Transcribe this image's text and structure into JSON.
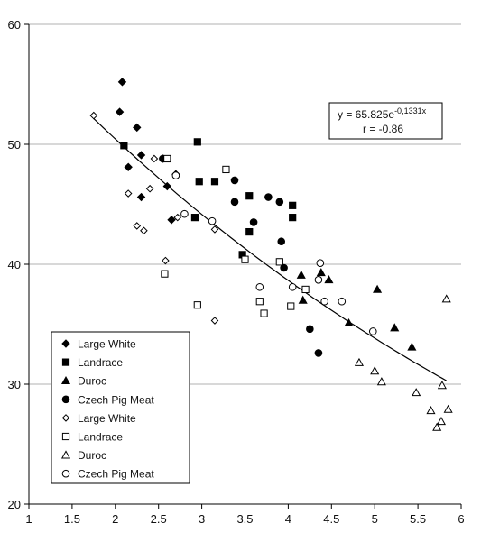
{
  "chart_data": {
    "type": "scatter",
    "title": "",
    "xlabel": "",
    "ylabel": "",
    "xlim": [
      1,
      6
    ],
    "ylim": [
      20,
      60
    ],
    "xticks": [
      1,
      1.5,
      2,
      2.5,
      3,
      3.5,
      4,
      4.5,
      5,
      5.5,
      6
    ],
    "xtick_labels": [
      "1",
      "1.5",
      "2",
      "2.5",
      "3",
      "3.5",
      "4",
      "4.5",
      "5",
      "5.5",
      "6"
    ],
    "yticks": [
      20,
      30,
      40,
      50,
      60
    ],
    "ytick_labels": [
      "20",
      "30",
      "40",
      "50",
      "60"
    ],
    "grid": "horizontal",
    "legend_position": "bottom-left",
    "annotation": {
      "line1_main": "y = 65.825e",
      "line1_exp": "-0,1331x",
      "line2": "r = -0.86"
    },
    "trendline": {
      "type": "exponential",
      "a": 65.825,
      "b": -0.1331,
      "x_range": [
        1.75,
        5.83
      ]
    },
    "series": [
      {
        "name": "Large White",
        "marker": "diamond",
        "filled": true,
        "points": [
          [
            2.08,
            55.2
          ],
          [
            2.05,
            52.7
          ],
          [
            2.25,
            51.4
          ],
          [
            2.3,
            49.1
          ],
          [
            2.15,
            48.1
          ],
          [
            2.55,
            48.8
          ],
          [
            2.6,
            46.5
          ],
          [
            2.3,
            45.6
          ],
          [
            2.65,
            43.7
          ],
          [
            2.7,
            47.5
          ]
        ]
      },
      {
        "name": "Landrace",
        "marker": "square",
        "filled": true,
        "points": [
          [
            2.1,
            49.9
          ],
          [
            2.95,
            50.2
          ],
          [
            2.97,
            46.9
          ],
          [
            3.15,
            46.9
          ],
          [
            3.55,
            45.7
          ],
          [
            2.92,
            43.9
          ],
          [
            3.55,
            42.7
          ],
          [
            3.47,
            40.8
          ],
          [
            4.05,
            44.9
          ],
          [
            4.05,
            43.9
          ]
        ]
      },
      {
        "name": "Duroc",
        "marker": "triangle",
        "filled": true,
        "points": [
          [
            4.15,
            39.1
          ],
          [
            4.38,
            39.3
          ],
          [
            4.47,
            38.7
          ],
          [
            4.17,
            37.0
          ],
          [
            5.03,
            37.9
          ],
          [
            4.7,
            35.1
          ],
          [
            5.23,
            34.7
          ],
          [
            5.43,
            33.1
          ]
        ]
      },
      {
        "name": "Czech Pig Meat",
        "marker": "circle",
        "filled": true,
        "points": [
          [
            2.55,
            48.8
          ],
          [
            3.38,
            47.0
          ],
          [
            3.77,
            45.6
          ],
          [
            3.9,
            45.2
          ],
          [
            3.38,
            45.2
          ],
          [
            3.6,
            43.5
          ],
          [
            3.92,
            41.9
          ],
          [
            3.95,
            39.7
          ],
          [
            4.25,
            34.6
          ],
          [
            4.35,
            32.6
          ]
        ]
      },
      {
        "name": "Large White",
        "marker": "diamond",
        "filled": false,
        "points": [
          [
            1.75,
            52.4
          ],
          [
            2.45,
            48.8
          ],
          [
            2.4,
            46.3
          ],
          [
            2.15,
            45.9
          ],
          [
            2.25,
            43.2
          ],
          [
            2.33,
            42.8
          ],
          [
            2.72,
            43.9
          ],
          [
            3.15,
            42.9
          ],
          [
            2.58,
            40.3
          ],
          [
            3.15,
            35.3
          ]
        ]
      },
      {
        "name": "Landrace",
        "marker": "square",
        "filled": false,
        "points": [
          [
            2.6,
            48.8
          ],
          [
            3.28,
            47.9
          ],
          [
            2.57,
            39.2
          ],
          [
            3.5,
            40.4
          ],
          [
            3.9,
            40.2
          ],
          [
            4.2,
            37.9
          ],
          [
            3.67,
            36.9
          ],
          [
            3.72,
            35.9
          ],
          [
            4.03,
            36.5
          ],
          [
            2.95,
            36.6
          ]
        ]
      },
      {
        "name": "Duroc",
        "marker": "triangle",
        "filled": false,
        "points": [
          [
            5.83,
            37.1
          ],
          [
            4.82,
            31.8
          ],
          [
            5.0,
            31.1
          ],
          [
            5.08,
            30.2
          ],
          [
            5.48,
            29.3
          ],
          [
            5.78,
            29.9
          ],
          [
            5.65,
            27.8
          ],
          [
            5.85,
            27.9
          ],
          [
            5.77,
            26.9
          ],
          [
            5.72,
            26.4
          ]
        ]
      },
      {
        "name": "Czech Pig Meat",
        "marker": "circle",
        "filled": false,
        "points": [
          [
            2.7,
            47.4
          ],
          [
            2.8,
            44.2
          ],
          [
            3.12,
            43.6
          ],
          [
            3.67,
            38.1
          ],
          [
            4.05,
            38.1
          ],
          [
            4.37,
            40.1
          ],
          [
            4.35,
            38.7
          ],
          [
            4.42,
            36.9
          ],
          [
            4.62,
            36.9
          ],
          [
            4.98,
            34.4
          ]
        ]
      }
    ]
  }
}
